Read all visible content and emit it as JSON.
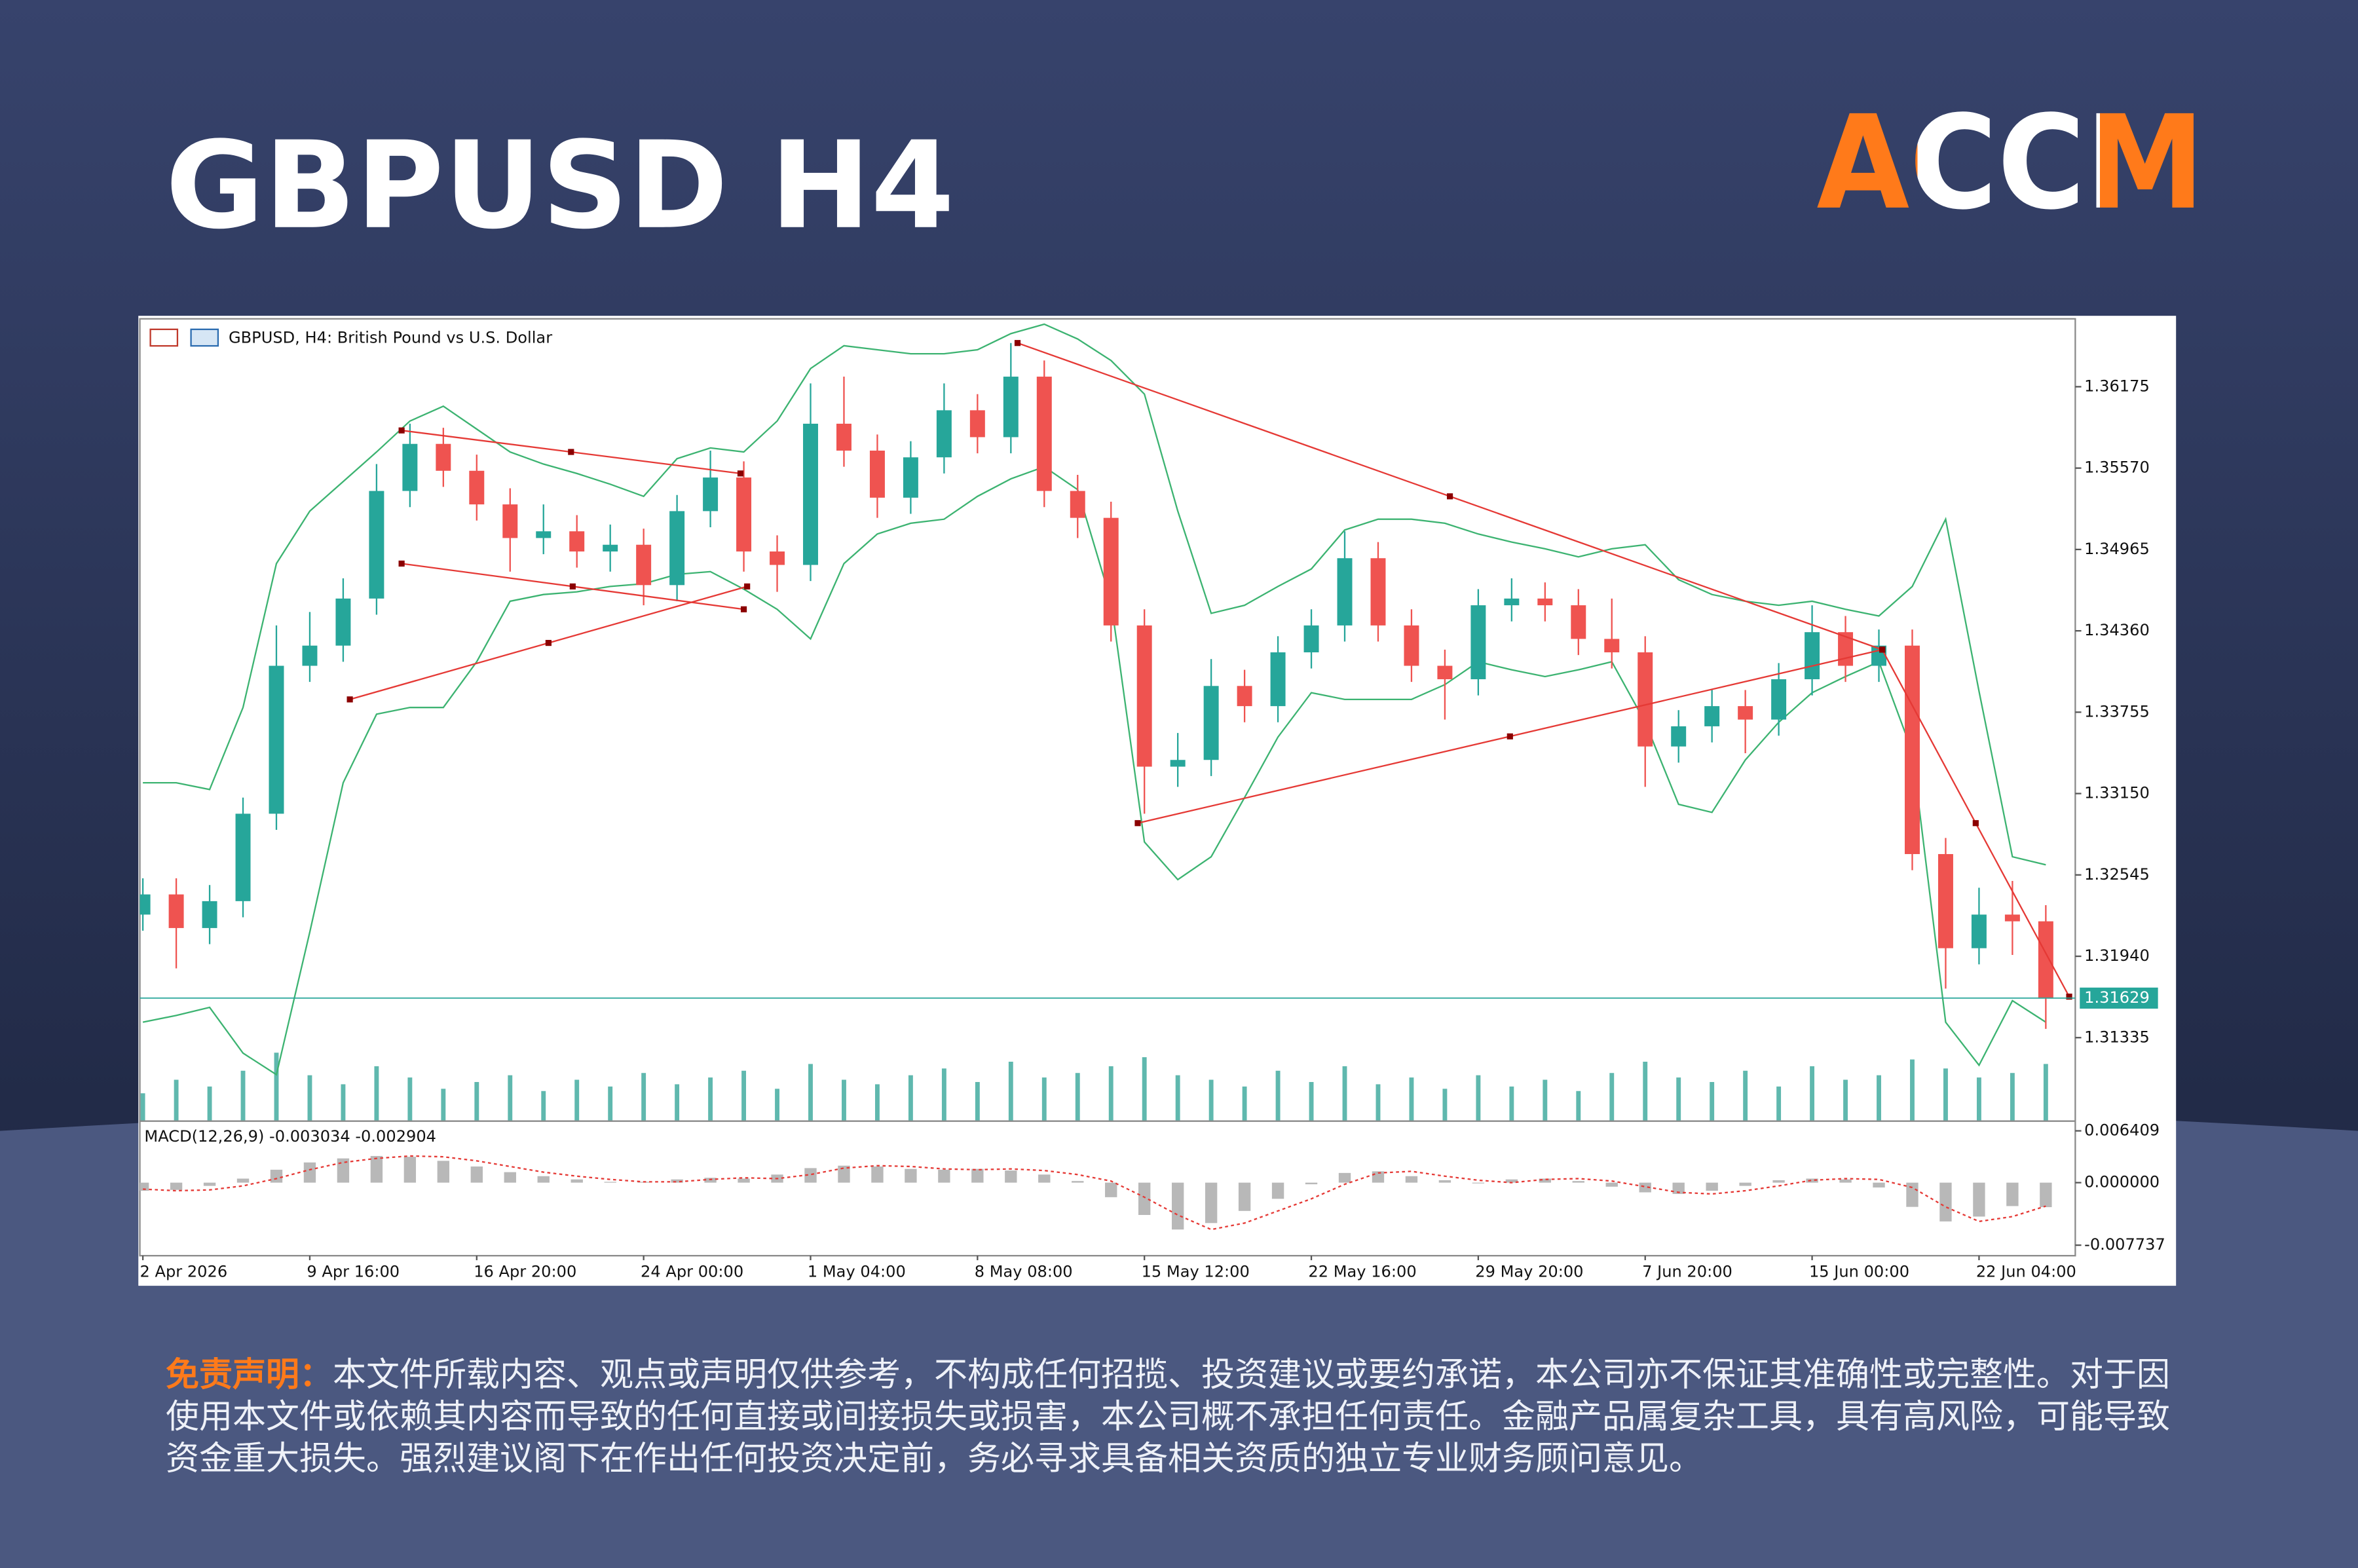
{
  "title": "GBPUSD H4",
  "brand": "ACCM",
  "disclaimer": {
    "label": "免责声明：",
    "text": "本文件所载内容、观点或声明仅供参考，不构成任何招揽、投资建议或要约承诺，本公司亦不保证其准确性或完整性。对于因使用本文件或依赖其内容而导致的任何直接或间接损失或损害，本公司概不承担任何责任。金融产品属复杂工具，具有高风险，可能导致资金重大损失。强烈建议阁下在作出任何投资决定前，务必寻求具备相关资质的独立专业财务顾问意见。"
  },
  "chart_data": {
    "type": "candlestick",
    "title": "GBPUSD, H4: British Pound vs U.S. Dollar",
    "categories": [
      "2 Apr 2026",
      null,
      null,
      null,
      null,
      "9 Apr 16:00",
      null,
      null,
      null,
      null,
      "16 Apr 20:00",
      null,
      null,
      null,
      null,
      "24 Apr 00:00",
      null,
      null,
      null,
      null,
      "1 May 04:00",
      null,
      null,
      null,
      null,
      "8 May 08:00",
      null,
      null,
      null,
      null,
      "15 May 12:00",
      null,
      null,
      null,
      null,
      "22 May 16:00",
      null,
      null,
      null,
      null,
      "29 May 20:00",
      null,
      null,
      null,
      null,
      "7 Jun 20:00",
      null,
      null,
      null,
      null,
      "15 Jun 00:00",
      null,
      null,
      null,
      null,
      "22 Jun 04:00",
      null,
      null
    ],
    "open": [
      1.3225,
      1.324,
      1.3215,
      1.3235,
      1.33,
      1.341,
      1.3425,
      1.346,
      1.354,
      1.3575,
      1.3555,
      1.353,
      1.3505,
      1.351,
      1.3495,
      1.35,
      1.347,
      1.3525,
      1.355,
      1.3495,
      1.3485,
      1.359,
      1.357,
      1.3535,
      1.3565,
      1.36,
      1.358,
      1.3625,
      1.354,
      1.352,
      1.344,
      1.3335,
      1.334,
      1.3395,
      1.338,
      1.342,
      1.344,
      1.349,
      1.344,
      1.341,
      1.34,
      1.3455,
      1.346,
      1.3455,
      1.343,
      1.342,
      1.335,
      1.3365,
      1.338,
      1.337,
      1.34,
      1.3435,
      1.341,
      1.3425,
      1.327,
      1.32,
      1.3225,
      1.322
    ],
    "high": [
      1.3252,
      1.3252,
      1.3247,
      1.3312,
      1.344,
      1.345,
      1.3475,
      1.356,
      1.359,
      1.3587,
      1.3567,
      1.3542,
      1.353,
      1.3522,
      1.3515,
      1.3512,
      1.3537,
      1.357,
      1.3562,
      1.3507,
      1.362,
      1.3625,
      1.3582,
      1.3577,
      1.362,
      1.3612,
      1.365,
      1.3637,
      1.3552,
      1.3532,
      1.3452,
      1.336,
      1.3415,
      1.3407,
      1.3432,
      1.3452,
      1.351,
      1.3502,
      1.3452,
      1.3422,
      1.3467,
      1.3475,
      1.3472,
      1.3467,
      1.346,
      1.3432,
      1.3377,
      1.3392,
      1.3392,
      1.3412,
      1.3455,
      1.3447,
      1.3437,
      1.3437,
      1.3282,
      1.3245,
      1.325,
      1.3232
    ],
    "low": [
      1.3213,
      1.3185,
      1.3203,
      1.3223,
      1.3288,
      1.3398,
      1.3413,
      1.3448,
      1.3528,
      1.3543,
      1.3518,
      1.348,
      1.3493,
      1.3483,
      1.348,
      1.3455,
      1.3458,
      1.3513,
      1.348,
      1.3465,
      1.3473,
      1.3558,
      1.352,
      1.3523,
      1.3553,
      1.3568,
      1.3568,
      1.3528,
      1.3505,
      1.3428,
      1.33,
      1.332,
      1.3328,
      1.3368,
      1.3368,
      1.3408,
      1.3428,
      1.3428,
      1.3398,
      1.337,
      1.3388,
      1.3443,
      1.3443,
      1.3418,
      1.3408,
      1.332,
      1.3338,
      1.3353,
      1.3345,
      1.3358,
      1.3388,
      1.3398,
      1.3398,
      1.3258,
      1.317,
      1.3188,
      1.3195,
      1.314
    ],
    "close": [
      1.324,
      1.3215,
      1.3235,
      1.33,
      1.341,
      1.3425,
      1.346,
      1.354,
      1.3575,
      1.3555,
      1.353,
      1.3505,
      1.351,
      1.3495,
      1.35,
      1.347,
      1.3525,
      1.355,
      1.3495,
      1.3485,
      1.359,
      1.357,
      1.3535,
      1.3565,
      1.36,
      1.358,
      1.3625,
      1.354,
      1.352,
      1.344,
      1.3335,
      1.334,
      1.3395,
      1.338,
      1.342,
      1.344,
      1.349,
      1.344,
      1.341,
      1.34,
      1.3455,
      1.346,
      1.3455,
      1.343,
      1.342,
      1.335,
      1.3365,
      1.338,
      1.337,
      1.34,
      1.3435,
      1.341,
      1.3425,
      1.327,
      1.32,
      1.3225,
      1.322,
      1.31629
    ],
    "up_color": "#26a69a",
    "down_color": "#ef5350",
    "ylim": [
      1.3072,
      1.3668
    ],
    "yticks": [
      1.36175,
      {
        "value": 1.3557,
        "label": "1.35570"
      },
      1.34965,
      {
        "value": 1.3436,
        "label": "1.34360"
      },
      1.33755,
      {
        "value": 1.3315,
        "label": "1.33150"
      },
      1.32545,
      {
        "value": 1.3194,
        "label": "1.31940"
      },
      1.31335
    ],
    "current_price": 1.31629,
    "current_color": "#26a69a",
    "bollinger": {
      "color": "#3cb371",
      "upper": [
        1.3323,
        1.3323,
        1.3318,
        1.3379,
        1.3486,
        1.3525,
        1.3547,
        1.3569,
        1.3592,
        1.3603,
        1.3586,
        1.3569,
        1.356,
        1.3553,
        1.3545,
        1.3536,
        1.3564,
        1.3572,
        1.3569,
        1.3592,
        1.3631,
        1.3648,
        1.3645,
        1.3642,
        1.3642,
        1.3645,
        1.3657,
        1.3664,
        1.3653,
        1.3637,
        1.3612,
        1.3525,
        1.3449,
        1.3455,
        1.3469,
        1.3482,
        1.3511,
        1.3519,
        1.3519,
        1.3516,
        1.3508,
        1.3502,
        1.3497,
        1.3491,
        1.3497,
        1.35,
        1.3474,
        1.3463,
        1.3458,
        1.3455,
        1.3458,
        1.3452,
        1.3447,
        1.3469,
        1.3519,
        1.3391,
        1.3268,
        1.3262
      ],
      "lower": [
        1.3145,
        1.315,
        1.3156,
        1.3122,
        1.3106,
        1.3212,
        1.3323,
        1.3374,
        1.3379,
        1.3379,
        1.3413,
        1.3458,
        1.3463,
        1.3465,
        1.3469,
        1.3471,
        1.3478,
        1.348,
        1.3467,
        1.3452,
        1.343,
        1.3486,
        1.3508,
        1.3516,
        1.3519,
        1.3536,
        1.3549,
        1.3558,
        1.3541,
        1.3458,
        1.3279,
        1.3251,
        1.3268,
        1.3312,
        1.3357,
        1.339,
        1.3385,
        1.3385,
        1.3385,
        1.3396,
        1.3413,
        1.3407,
        1.3402,
        1.3407,
        1.3413,
        1.3368,
        1.3307,
        1.3301,
        1.334,
        1.3368,
        1.339,
        1.3402,
        1.3413,
        1.3346,
        1.3145,
        1.3113,
        1.3161,
        1.3145
      ]
    },
    "volume": {
      "color": "#5fb8ae",
      "values": [
        12,
        18,
        15,
        22,
        30,
        20,
        16,
        24,
        19,
        14,
        17,
        20,
        13,
        18,
        15,
        21,
        16,
        19,
        22,
        14,
        25,
        18,
        16,
        20,
        23,
        17,
        26,
        19,
        21,
        24,
        28,
        20,
        18,
        15,
        22,
        17,
        24,
        16,
        19,
        14,
        20,
        15,
        18,
        13,
        21,
        26,
        19,
        17,
        22,
        15,
        24,
        18,
        20,
        27,
        23,
        19,
        21,
        25
      ]
    },
    "trendlines": [
      {
        "color": "#e53935",
        "points": [
          [
            7.75,
            1.3585
          ],
          [
            17.9,
            1.3553
          ]
        ]
      },
      {
        "color": "#e53935",
        "points": [
          [
            7.75,
            1.3486
          ],
          [
            18.0,
            1.3452
          ]
        ]
      },
      {
        "color": "#e53935",
        "points": [
          [
            6.2,
            1.3385
          ],
          [
            18.1,
            1.3469
          ]
        ]
      },
      {
        "color": "#e53935",
        "points": [
          [
            26.2,
            1.365
          ],
          [
            52.1,
            1.3422
          ]
        ]
      },
      {
        "color": "#e53935",
        "points": [
          [
            29.8,
            1.3293
          ],
          [
            52.1,
            1.3422
          ]
        ]
      },
      {
        "color": "#e53935",
        "points": [
          [
            52.1,
            1.3422
          ],
          [
            57.7,
            1.3164
          ]
        ]
      }
    ],
    "macd": {
      "title": "MACD(12,26,9) -0.003034 -0.002904",
      "ylim": [
        -0.00904,
        0.00715
      ],
      "yticks": [
        0.006409,
        {
          "value": 0,
          "label": "0.000000"
        },
        -0.007737
      ],
      "hist_color": "#b8b8b8",
      "signal_color": "#e53935",
      "histogram": [
        -0.001,
        -0.0009,
        -0.0004,
        0.0005,
        0.0016,
        0.0025,
        0.003,
        0.0033,
        0.0032,
        0.0027,
        0.002,
        0.0013,
        0.0008,
        0.0004,
        0.0001,
        0.0001,
        0.0004,
        0.0006,
        0.0005,
        0.001,
        0.0018,
        0.0021,
        0.002,
        0.0017,
        0.0016,
        0.0017,
        0.0015,
        0.001,
        0.0002,
        -0.0018,
        -0.004,
        -0.0058,
        -0.005,
        -0.0035,
        -0.002,
        -0.0002,
        0.0012,
        0.0014,
        0.0008,
        0.0003,
        0.0,
        0.0004,
        0.0005,
        0.0002,
        -0.0005,
        -0.0012,
        -0.0014,
        -0.001,
        -0.0004,
        0.0003,
        0.0005,
        0.0004,
        -0.0006,
        -0.003,
        -0.0048,
        -0.0042,
        -0.0029,
        -0.003034
      ],
      "signal": [
        -0.0008,
        -0.001,
        -0.0009,
        -0.0004,
        0.0005,
        0.0016,
        0.0025,
        0.003,
        0.0033,
        0.0032,
        0.0027,
        0.002,
        0.0013,
        0.0008,
        0.0004,
        0.0001,
        0.0001,
        0.0004,
        0.0006,
        0.0005,
        0.001,
        0.0018,
        0.0021,
        0.002,
        0.0017,
        0.0016,
        0.0017,
        0.0015,
        0.001,
        0.0002,
        -0.0018,
        -0.004,
        -0.0058,
        -0.005,
        -0.0035,
        -0.002,
        -0.0002,
        0.0012,
        0.0014,
        0.0008,
        0.0003,
        0.0,
        0.0004,
        0.0005,
        0.0002,
        -0.0005,
        -0.0012,
        -0.0014,
        -0.001,
        -0.0004,
        0.0003,
        0.0005,
        0.0004,
        -0.0006,
        -0.003,
        -0.0048,
        -0.0042,
        -0.002904
      ]
    }
  }
}
